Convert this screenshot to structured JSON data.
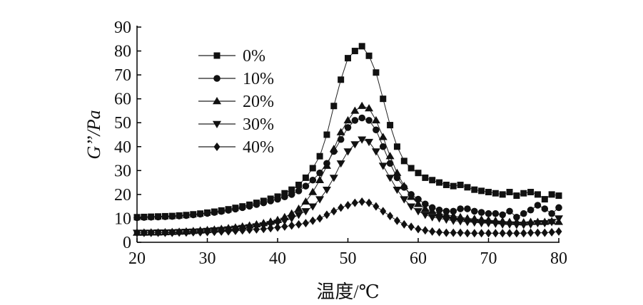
{
  "chart_data": {
    "type": "line",
    "xlabel": "温度/℃",
    "ylabel": "G’’/Pa",
    "xlim": [
      20,
      80
    ],
    "ylim": [
      0,
      90
    ],
    "xticks": [
      20,
      30,
      40,
      50,
      60,
      70,
      80
    ],
    "yticks": [
      0,
      10,
      20,
      30,
      40,
      50,
      60,
      70,
      80,
      90
    ],
    "grid": false,
    "legend_position": "top-left",
    "series": [
      {
        "name": "0%",
        "marker": "square",
        "x": [
          20,
          21,
          22,
          23,
          24,
          25,
          26,
          27,
          28,
          29,
          30,
          31,
          32,
          33,
          34,
          35,
          36,
          37,
          38,
          39,
          40,
          41,
          42,
          43,
          44,
          45,
          46,
          47,
          48,
          49,
          50,
          51,
          52,
          53,
          54,
          55,
          56,
          57,
          58,
          59,
          60,
          61,
          62,
          63,
          64,
          65,
          66,
          67,
          68,
          69,
          70,
          71,
          72,
          73,
          74,
          75,
          76,
          77,
          78,
          79,
          80
        ],
        "values": [
          10.5,
          10.6,
          10.7,
          10.8,
          10.9,
          11.0,
          11.2,
          11.4,
          11.7,
          12.0,
          12.4,
          12.8,
          13.3,
          13.8,
          14.4,
          15.0,
          15.7,
          16.5,
          17.3,
          18.2,
          19.1,
          20.5,
          22.0,
          24.0,
          27.0,
          31.0,
          36.0,
          45.0,
          57.0,
          68.0,
          77.0,
          80.0,
          82.0,
          78.0,
          71.0,
          60.0,
          49.0,
          40.0,
          34.0,
          31.0,
          29.0,
          27.0,
          26.0,
          25.0,
          24.0,
          23.5,
          24.0,
          23.0,
          22.0,
          21.5,
          21.0,
          20.5,
          20.0,
          21.0,
          19.5,
          20.5,
          21.0,
          20.0,
          18.0,
          20.0,
          19.5
        ]
      },
      {
        "name": "10%",
        "marker": "circle",
        "x": [
          20,
          21,
          22,
          23,
          24,
          25,
          26,
          27,
          28,
          29,
          30,
          31,
          32,
          33,
          34,
          35,
          36,
          37,
          38,
          39,
          40,
          41,
          42,
          43,
          44,
          45,
          46,
          47,
          48,
          49,
          50,
          51,
          52,
          53,
          54,
          55,
          56,
          57,
          58,
          59,
          60,
          61,
          62,
          63,
          64,
          65,
          66,
          67,
          68,
          69,
          70,
          71,
          72,
          73,
          74,
          75,
          76,
          77,
          78,
          79,
          80
        ],
        "values": [
          10.3,
          10.4,
          10.5,
          10.6,
          10.7,
          10.8,
          11.0,
          11.2,
          11.5,
          11.8,
          12.1,
          12.5,
          12.9,
          13.4,
          13.9,
          14.5,
          15.1,
          15.8,
          16.5,
          17.3,
          18.0,
          19.0,
          20.0,
          21.5,
          23.5,
          26.0,
          29.0,
          33.0,
          38.0,
          43.0,
          48.0,
          51.0,
          52.0,
          51.0,
          47.0,
          40.0,
          33.0,
          27.0,
          23.0,
          20.0,
          18.0,
          16.0,
          14.5,
          13.5,
          13.0,
          13.0,
          14.0,
          14.0,
          13.0,
          12.5,
          12.0,
          12.0,
          11.5,
          13.0,
          10.5,
          12.0,
          13.5,
          15.5,
          14.0,
          12.0,
          14.5
        ]
      },
      {
        "name": "20%",
        "marker": "triangle-up",
        "x": [
          20,
          21,
          22,
          23,
          24,
          25,
          26,
          27,
          28,
          29,
          30,
          31,
          32,
          33,
          34,
          35,
          36,
          37,
          38,
          39,
          40,
          41,
          42,
          43,
          44,
          45,
          46,
          47,
          48,
          49,
          50,
          51,
          52,
          53,
          54,
          55,
          56,
          57,
          58,
          59,
          60,
          61,
          62,
          63,
          64,
          65,
          66,
          67,
          68,
          69,
          70,
          71,
          72,
          73,
          74,
          75,
          76,
          77,
          78,
          79,
          80
        ],
        "values": [
          4.0,
          4.0,
          4.1,
          4.1,
          4.2,
          4.3,
          4.4,
          4.5,
          4.7,
          4.9,
          5.1,
          5.3,
          5.6,
          5.9,
          6.2,
          6.6,
          7.0,
          7.5,
          8.0,
          8.6,
          9.3,
          10.5,
          12.0,
          14.0,
          17.0,
          21.0,
          26.0,
          32.0,
          39.0,
          46.0,
          51.0,
          55.0,
          57.0,
          56.0,
          51.0,
          44.0,
          36.0,
          29.0,
          23.5,
          19.0,
          16.0,
          14.0,
          13.0,
          12.0,
          11.5,
          11.0,
          10.5,
          10.0,
          9.8,
          9.5,
          9.3,
          9.0,
          8.8,
          8.5,
          8.5,
          8.3,
          8.5,
          8.5,
          8.5,
          8.8,
          8.5
        ]
      },
      {
        "name": "30%",
        "marker": "triangle-down",
        "x": [
          20,
          21,
          22,
          23,
          24,
          25,
          26,
          27,
          28,
          29,
          30,
          31,
          32,
          33,
          34,
          35,
          36,
          37,
          38,
          39,
          40,
          41,
          42,
          43,
          44,
          45,
          46,
          47,
          48,
          49,
          50,
          51,
          52,
          53,
          54,
          55,
          56,
          57,
          58,
          59,
          60,
          61,
          62,
          63,
          64,
          65,
          66,
          67,
          68,
          69,
          70,
          71,
          72,
          73,
          74,
          75,
          76,
          77,
          78,
          79,
          80
        ],
        "values": [
          4.0,
          4.0,
          4.0,
          4.1,
          4.1,
          4.2,
          4.3,
          4.4,
          4.5,
          4.6,
          4.8,
          5.0,
          5.2,
          5.4,
          5.7,
          6.0,
          6.3,
          6.7,
          7.1,
          7.6,
          8.2,
          9.0,
          10.0,
          11.5,
          13.0,
          15.0,
          18.0,
          22.0,
          27.0,
          33.0,
          38.0,
          41.0,
          43.0,
          42.0,
          38.0,
          32.0,
          27.0,
          22.0,
          18.0,
          15.0,
          13.0,
          11.5,
          10.5,
          10.0,
          9.5,
          9.0,
          8.8,
          8.5,
          8.3,
          8.0,
          8.0,
          7.8,
          7.5,
          7.5,
          7.3,
          7.3,
          7.5,
          8.0,
          8.0,
          8.5,
          10.0
        ]
      },
      {
        "name": "40%",
        "marker": "diamond",
        "x": [
          20,
          21,
          22,
          23,
          24,
          25,
          26,
          27,
          28,
          29,
          30,
          31,
          32,
          33,
          34,
          35,
          36,
          37,
          38,
          39,
          40,
          41,
          42,
          43,
          44,
          45,
          46,
          47,
          48,
          49,
          50,
          51,
          52,
          53,
          54,
          55,
          56,
          57,
          58,
          59,
          60,
          61,
          62,
          63,
          64,
          65,
          66,
          67,
          68,
          69,
          70,
          71,
          72,
          73,
          74,
          75,
          76,
          77,
          78,
          79,
          80
        ],
        "values": [
          4.0,
          4.0,
          4.0,
          4.0,
          4.0,
          4.0,
          4.1,
          4.1,
          4.2,
          4.2,
          4.3,
          4.4,
          4.5,
          4.6,
          4.8,
          5.0,
          5.2,
          5.4,
          5.6,
          5.9,
          6.2,
          6.6,
          7.0,
          7.5,
          8.0,
          9.0,
          10.0,
          11.5,
          13.0,
          14.5,
          15.5,
          16.5,
          17.0,
          16.5,
          15.0,
          13.0,
          11.0,
          9.0,
          7.5,
          6.5,
          5.5,
          5.0,
          4.5,
          4.2,
          4.0,
          4.0,
          4.0,
          3.8,
          3.8,
          3.8,
          3.8,
          3.8,
          3.8,
          3.8,
          3.8,
          3.8,
          4.0,
          4.0,
          4.0,
          4.2,
          4.5
        ]
      }
    ]
  }
}
